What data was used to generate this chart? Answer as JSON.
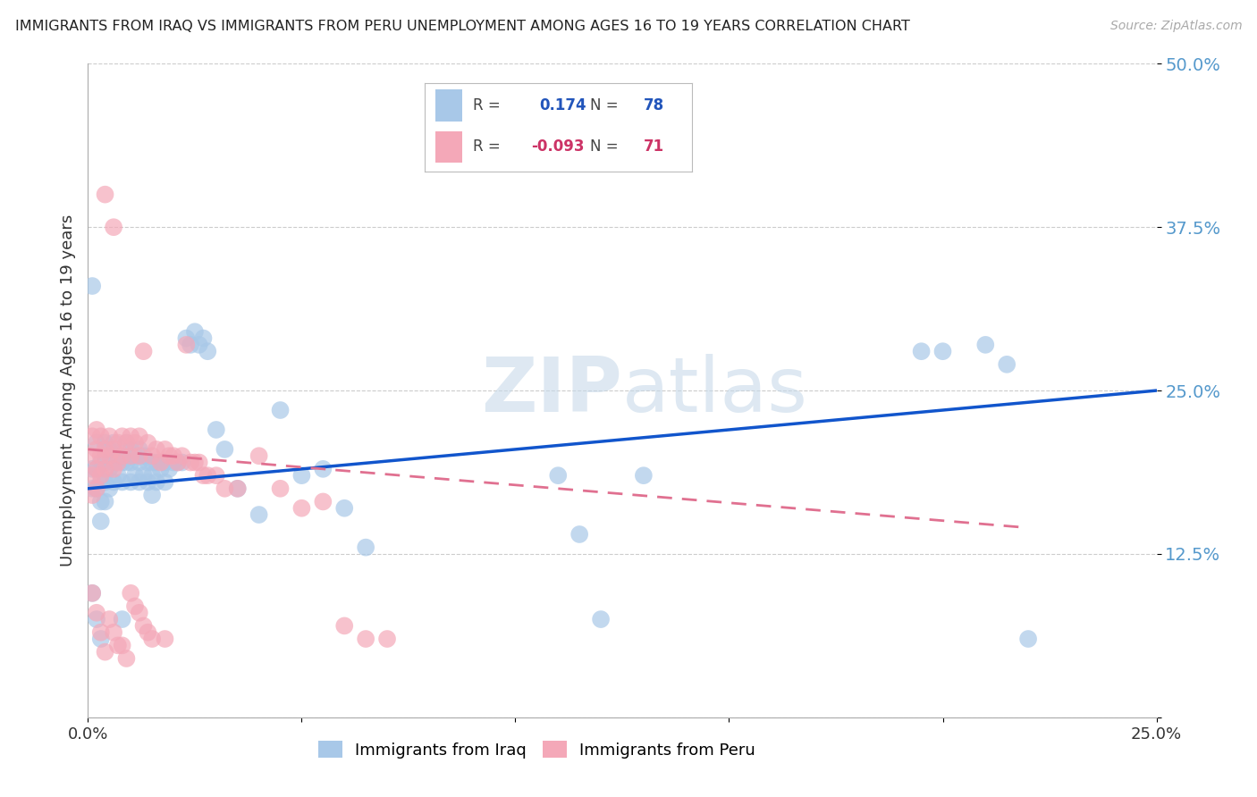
{
  "title": "IMMIGRANTS FROM IRAQ VS IMMIGRANTS FROM PERU UNEMPLOYMENT AMONG AGES 16 TO 19 YEARS CORRELATION CHART",
  "source": "Source: ZipAtlas.com",
  "ylabel": "Unemployment Among Ages 16 to 19 years",
  "xlim": [
    0.0,
    0.25
  ],
  "ylim": [
    0.0,
    0.5
  ],
  "yticks": [
    0.0,
    0.125,
    0.25,
    0.375,
    0.5
  ],
  "ytick_labels": [
    "",
    "12.5%",
    "25.0%",
    "37.5%",
    "50.0%"
  ],
  "xticks": [
    0.0,
    0.05,
    0.1,
    0.15,
    0.2,
    0.25
  ],
  "xtick_labels": [
    "0.0%",
    "",
    "",
    "",
    "",
    "25.0%"
  ],
  "iraq_color": "#a8c8e8",
  "peru_color": "#f4a8b8",
  "iraq_line_color": "#1155cc",
  "peru_line_color": "#e07090",
  "R_iraq": 0.174,
  "N_iraq": 78,
  "R_peru": -0.093,
  "N_peru": 71,
  "watermark": "ZIPatlas",
  "iraq_x": [
    0.001,
    0.001,
    0.001,
    0.002,
    0.002,
    0.002,
    0.003,
    0.003,
    0.003,
    0.003,
    0.004,
    0.004,
    0.004,
    0.004,
    0.005,
    0.005,
    0.005,
    0.006,
    0.006,
    0.006,
    0.007,
    0.007,
    0.008,
    0.008,
    0.009,
    0.009,
    0.01,
    0.01,
    0.01,
    0.011,
    0.011,
    0.012,
    0.012,
    0.012,
    0.013,
    0.013,
    0.014,
    0.014,
    0.015,
    0.015,
    0.015,
    0.016,
    0.016,
    0.017,
    0.018,
    0.018,
    0.019,
    0.02,
    0.021,
    0.022,
    0.023,
    0.024,
    0.025,
    0.026,
    0.027,
    0.028,
    0.03,
    0.032,
    0.035,
    0.04,
    0.045,
    0.05,
    0.055,
    0.06,
    0.065,
    0.11,
    0.115,
    0.12,
    0.13,
    0.195,
    0.2,
    0.21,
    0.215,
    0.22,
    0.001,
    0.002,
    0.003,
    0.008
  ],
  "iraq_y": [
    0.33,
    0.19,
    0.175,
    0.21,
    0.19,
    0.175,
    0.195,
    0.18,
    0.165,
    0.15,
    0.21,
    0.195,
    0.18,
    0.165,
    0.205,
    0.19,
    0.175,
    0.21,
    0.195,
    0.18,
    0.2,
    0.185,
    0.195,
    0.18,
    0.21,
    0.195,
    0.205,
    0.195,
    0.18,
    0.2,
    0.185,
    0.205,
    0.195,
    0.18,
    0.2,
    0.185,
    0.195,
    0.18,
    0.195,
    0.185,
    0.17,
    0.195,
    0.18,
    0.19,
    0.195,
    0.18,
    0.19,
    0.195,
    0.195,
    0.195,
    0.29,
    0.285,
    0.295,
    0.285,
    0.29,
    0.28,
    0.22,
    0.205,
    0.175,
    0.155,
    0.235,
    0.185,
    0.19,
    0.16,
    0.13,
    0.185,
    0.14,
    0.075,
    0.185,
    0.28,
    0.28,
    0.285,
    0.27,
    0.06,
    0.095,
    0.075,
    0.06,
    0.075
  ],
  "peru_x": [
    0.001,
    0.001,
    0.001,
    0.001,
    0.002,
    0.002,
    0.002,
    0.002,
    0.003,
    0.003,
    0.003,
    0.004,
    0.004,
    0.004,
    0.005,
    0.005,
    0.006,
    0.006,
    0.006,
    0.007,
    0.007,
    0.008,
    0.008,
    0.009,
    0.01,
    0.01,
    0.011,
    0.012,
    0.012,
    0.013,
    0.014,
    0.015,
    0.016,
    0.017,
    0.018,
    0.018,
    0.019,
    0.02,
    0.021,
    0.022,
    0.023,
    0.024,
    0.025,
    0.026,
    0.027,
    0.028,
    0.03,
    0.032,
    0.035,
    0.04,
    0.045,
    0.05,
    0.055,
    0.06,
    0.065,
    0.07,
    0.001,
    0.002,
    0.003,
    0.004,
    0.005,
    0.006,
    0.007,
    0.008,
    0.009,
    0.01,
    0.011,
    0.012,
    0.013,
    0.014,
    0.015
  ],
  "peru_y": [
    0.215,
    0.2,
    0.185,
    0.17,
    0.22,
    0.205,
    0.19,
    0.175,
    0.215,
    0.2,
    0.185,
    0.4,
    0.205,
    0.19,
    0.215,
    0.2,
    0.375,
    0.205,
    0.19,
    0.21,
    0.195,
    0.215,
    0.2,
    0.21,
    0.215,
    0.2,
    0.21,
    0.215,
    0.2,
    0.28,
    0.21,
    0.2,
    0.205,
    0.195,
    0.205,
    0.06,
    0.2,
    0.2,
    0.195,
    0.2,
    0.285,
    0.195,
    0.195,
    0.195,
    0.185,
    0.185,
    0.185,
    0.175,
    0.175,
    0.2,
    0.175,
    0.16,
    0.165,
    0.07,
    0.06,
    0.06,
    0.095,
    0.08,
    0.065,
    0.05,
    0.075,
    0.065,
    0.055,
    0.055,
    0.045,
    0.095,
    0.085,
    0.08,
    0.07,
    0.065,
    0.06
  ],
  "background_color": "#ffffff",
  "grid_color": "#cccccc"
}
